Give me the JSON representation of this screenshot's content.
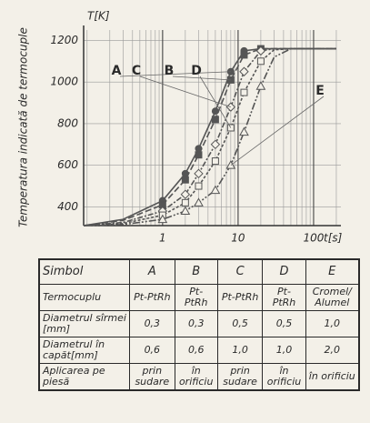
{
  "chart_data": {
    "type": "line",
    "y_label": "Temperatura indicată de termocuple",
    "y_unit": "T[K]",
    "x_unit": "t[s]",
    "x": [
      0.09,
      0.3,
      1,
      2,
      3,
      5,
      8,
      12,
      20,
      30,
      50,
      100,
      200
    ],
    "series": [
      {
        "name": "A",
        "color": "#555555",
        "dash": "none",
        "marker": "circle",
        "values": [
          310,
          340,
          430,
          560,
          680,
          860,
          1050,
          1150,
          1160,
          1160,
          1160,
          1160,
          1160
        ]
      },
      {
        "name": "B",
        "color": "#555555",
        "dash": "7 3",
        "marker": "square",
        "values": [
          310,
          335,
          410,
          530,
          650,
          820,
          1010,
          1130,
          1160,
          1160,
          1160,
          1160,
          1160
        ]
      },
      {
        "name": "C",
        "color": "#555555",
        "dash": "6 2 2 2",
        "marker": "diamond",
        "values": [
          310,
          325,
          380,
          460,
          560,
          700,
          880,
          1050,
          1150,
          1160,
          1160,
          1160,
          1160
        ]
      },
      {
        "name": "D",
        "color": "#555555",
        "dash": "3 2",
        "marker": "open-square",
        "values": [
          310,
          320,
          360,
          420,
          500,
          620,
          780,
          950,
          1100,
          1155,
          1160,
          1160,
          1160
        ]
      },
      {
        "name": "E",
        "color": "#555555",
        "dash": "8 2 2 2 2 2",
        "marker": "triangle",
        "values": [
          310,
          315,
          340,
          380,
          420,
          480,
          600,
          760,
          980,
          1120,
          1160,
          1160,
          1160
        ]
      }
    ],
    "xlim": [
      0.09,
      230
    ],
    "ylim": [
      310,
      1250
    ],
    "xticks": [
      1,
      10,
      100
    ],
    "yticks": [
      400,
      600,
      800,
      1000,
      1200
    ],
    "log_x": true,
    "grid": true,
    "minor_grid": true
  },
  "table": {
    "header": [
      "Simbol",
      "A",
      "B",
      "C",
      "D",
      "E"
    ],
    "rows": [
      [
        "Termocuplu",
        "Pt-PtRh",
        "Pt-PtRh",
        "Pt-PtRh",
        "Pt-PtRh",
        "Cromel/ Alumel"
      ],
      [
        "Diametrul sîrmei [mm]",
        "0,3",
        "0,3",
        "0,5",
        "0,5",
        "1,0"
      ],
      [
        "Diametrul în capăt[mm]",
        "0,6",
        "0,6",
        "1,0",
        "1,0",
        "2,0"
      ],
      [
        "Aplicarea pe piesă",
        "prin sudare",
        "în orificiu",
        "prin sudare",
        "în orificiu",
        "în orificiu"
      ]
    ]
  }
}
